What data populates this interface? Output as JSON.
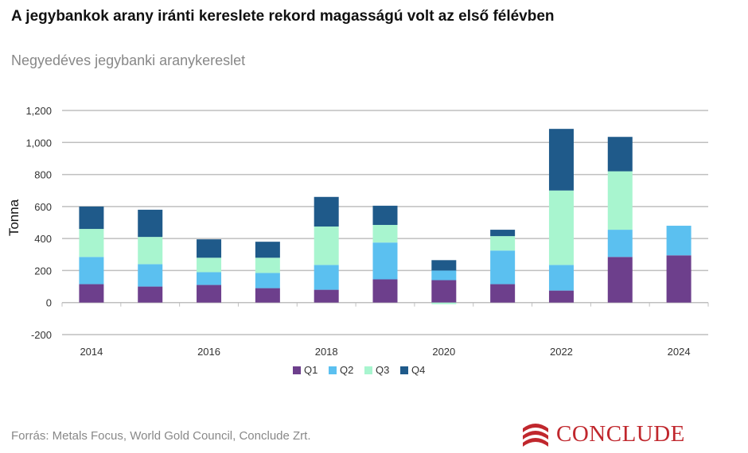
{
  "header": {
    "title": "A jegybankok arany iránti kereslete rekord magasságú volt az első félévben",
    "subtitle": "Negyedéves jegybanki aranykereslet"
  },
  "footer": {
    "source": "Forrás: Metals Focus, World Gold Council, Conclude Zrt.",
    "logo_text": "CONCLUDE"
  },
  "colors": {
    "Q1": "#6d3f8c",
    "Q2": "#5bc0f0",
    "Q3": "#a8f5cf",
    "Q4": "#1f5a8a",
    "grid": "#bfbfbf",
    "text": "#333333",
    "brand": "#c0272d"
  },
  "chart_data": {
    "type": "bar",
    "stacked": true,
    "categories": [
      "2014",
      "2015",
      "2016",
      "2017",
      "2018",
      "2019",
      "2020",
      "2021",
      "2022",
      "2023",
      "2024"
    ],
    "x_tick_labels": [
      "2014",
      "",
      "2016",
      "",
      "2018",
      "",
      "2020",
      "",
      "2022",
      "",
      "2024"
    ],
    "series": [
      {
        "name": "Q1",
        "values": [
          115,
          100,
          110,
          90,
          80,
          145,
          140,
          115,
          75,
          285,
          295
        ]
      },
      {
        "name": "Q2",
        "values": [
          170,
          140,
          80,
          95,
          155,
          230,
          60,
          210,
          160,
          170,
          185
        ]
      },
      {
        "name": "Q3",
        "values": [
          175,
          170,
          90,
          95,
          240,
          110,
          -10,
          90,
          465,
          365,
          0
        ]
      },
      {
        "name": "Q4",
        "values": [
          140,
          170,
          115,
          100,
          185,
          120,
          65,
          40,
          385,
          215,
          0
        ]
      }
    ],
    "ylabel": "Tonna",
    "xlabel": "",
    "ylim": [
      -200,
      1200
    ],
    "yticks": [
      -200,
      0,
      200,
      400,
      600,
      800,
      1000,
      1200
    ],
    "ytick_labels": [
      "-200",
      "0",
      "200",
      "400",
      "600",
      "800",
      "1,000",
      "1,200"
    ],
    "grid": true,
    "legend": [
      "Q1",
      "Q2",
      "Q3",
      "Q4"
    ],
    "legend_position": "bottom"
  }
}
